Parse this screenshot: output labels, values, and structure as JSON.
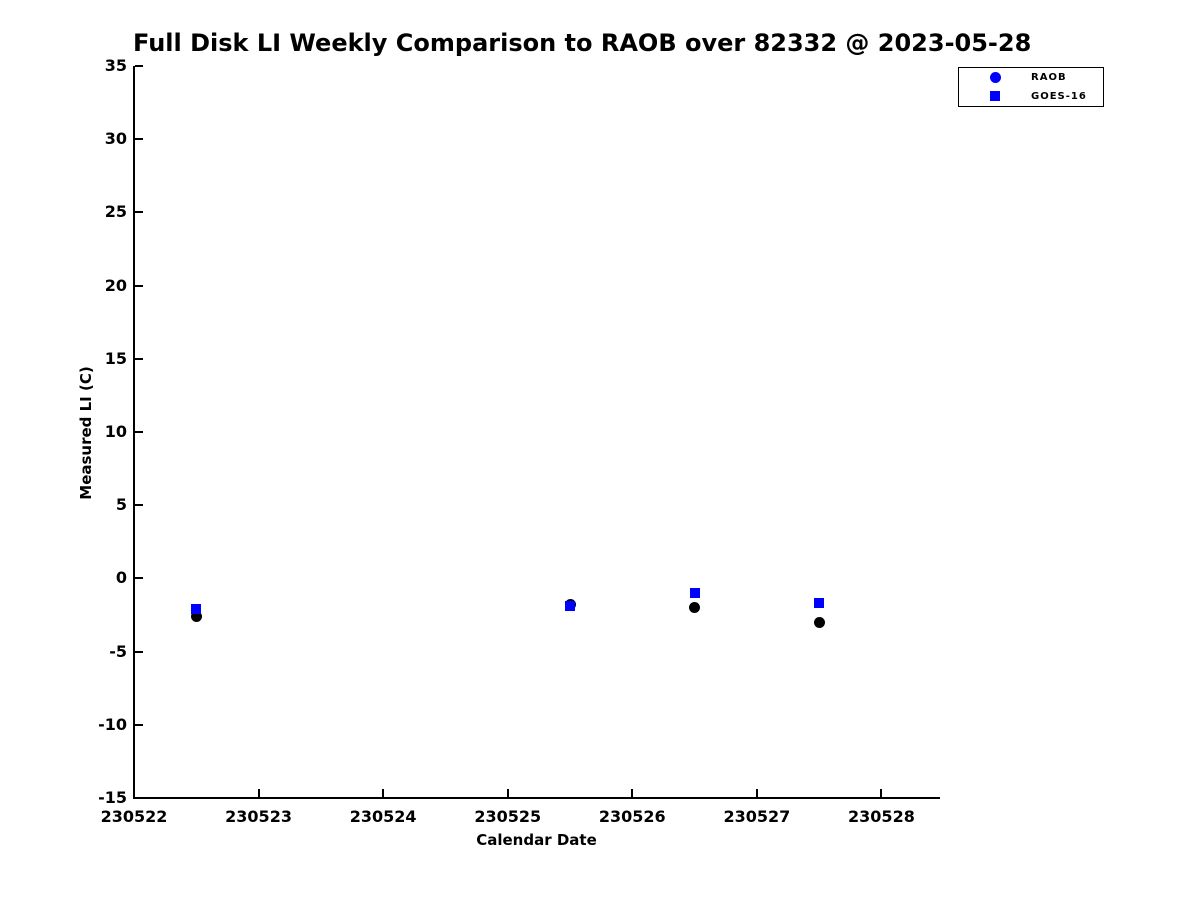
{
  "figure": {
    "background": "#ffffff",
    "text_color": "#000000",
    "axis_color": "#000000"
  },
  "chart_data": {
    "type": "scatter",
    "title": "Full Disk LI Weekly Comparison to RAOB over 82332 @ 2023-05-28",
    "xlabel": "Calendar Date",
    "ylabel": "Measured LI (C)",
    "xlim": [
      230522,
      230528.47
    ],
    "ylim": [
      -15,
      35
    ],
    "x_ticks": [
      230522,
      230523,
      230524,
      230525,
      230526,
      230527,
      230528
    ],
    "y_ticks": [
      35,
      30,
      25,
      20,
      15,
      10,
      5,
      0,
      -5,
      -10,
      -15
    ],
    "grid": false,
    "tick_direction": "in",
    "legend": {
      "position": "upper-right",
      "entries": [
        {
          "label": "RAOB",
          "marker": "circle",
          "color": "#0000ff"
        },
        {
          "label": "GOES-16",
          "marker": "square",
          "color": "#0000ff"
        }
      ]
    },
    "series": [
      {
        "name": "RAOB",
        "marker": "circle",
        "color": "#000000",
        "marker_size": 11,
        "points": [
          {
            "x": 230522.5,
            "y": -2.6
          },
          {
            "x": 230525.5,
            "y": -1.8
          },
          {
            "x": 230526.5,
            "y": -2.0
          },
          {
            "x": 230527.5,
            "y": -3.0
          }
        ]
      },
      {
        "name": "GOES-16",
        "marker": "square",
        "color": "#0000ff",
        "marker_size": 10,
        "points": [
          {
            "x": 230522.5,
            "y": -2.1
          },
          {
            "x": 230525.5,
            "y": -1.9
          },
          {
            "x": 230526.5,
            "y": -1.0
          },
          {
            "x": 230527.5,
            "y": -1.7
          }
        ]
      }
    ]
  }
}
